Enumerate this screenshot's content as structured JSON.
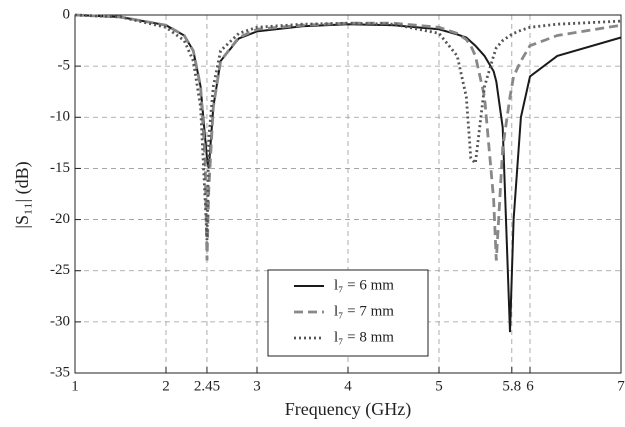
{
  "chart_data": {
    "type": "line",
    "xlabel": "Frequency (GHz)",
    "ylabel": "|S₁₁| (dB)",
    "x": [
      1,
      1.5,
      2,
      2.2,
      2.3,
      2.38,
      2.43,
      2.45,
      2.47,
      2.52,
      2.6,
      2.8,
      3,
      3.5,
      4,
      4.5,
      5,
      5.2,
      5.3,
      5.35,
      5.4,
      5.5,
      5.6,
      5.63,
      5.7,
      5.78,
      5.82,
      5.9,
      6,
      6.3,
      7
    ],
    "series": [
      {
        "name": "l₇ = 6 mm",
        "color": "#1a1a1a",
        "dash": "solid",
        "values": [
          0,
          -0.2,
          -1,
          -2,
          -3.5,
          -7,
          -12,
          -14,
          -15,
          -9,
          -4.5,
          -2.3,
          -1.6,
          -1.1,
          -0.9,
          -1,
          -1.4,
          -1.9,
          -2.2,
          -2.6,
          -3,
          -4,
          -5.5,
          -6.5,
          -11,
          -31,
          -20,
          -10,
          -6,
          -4,
          -2.2
        ]
      },
      {
        "name": "l₇ = 7 mm",
        "color": "#888888",
        "dash": "dashed",
        "values": [
          0,
          -0.2,
          -1,
          -2,
          -3.5,
          -7,
          -14,
          -24,
          -17,
          -9,
          -4.5,
          -2.2,
          -1.4,
          -1,
          -0.8,
          -0.8,
          -1.2,
          -1.8,
          -2.4,
          -3,
          -4,
          -8,
          -18,
          -24,
          -13,
          -8,
          -6,
          -4.5,
          -3,
          -2,
          -1
        ]
      },
      {
        "name": "l₇ = 8 mm",
        "color": "#555555",
        "dash": "dotted",
        "values": [
          0,
          -0.2,
          -1.2,
          -2.5,
          -4.5,
          -9,
          -18,
          -22,
          -12,
          -7,
          -3.5,
          -1.8,
          -1.2,
          -0.9,
          -0.8,
          -0.9,
          -1.8,
          -4,
          -8,
          -14,
          -14.5,
          -7,
          -4,
          -3.2,
          -2.5,
          -2,
          -1.8,
          -1.5,
          -1.2,
          -0.9,
          -0.6
        ]
      }
    ],
    "xlim": [
      1,
      7
    ],
    "ylim": [
      -35,
      0
    ],
    "xticks": [
      1,
      2,
      2.45,
      3,
      4,
      5,
      5.8,
      6,
      7
    ],
    "yticks": [
      0,
      -5,
      -10,
      -15,
      -20,
      -25,
      -30,
      -35
    ],
    "grid": true,
    "legend": "lower-center"
  }
}
